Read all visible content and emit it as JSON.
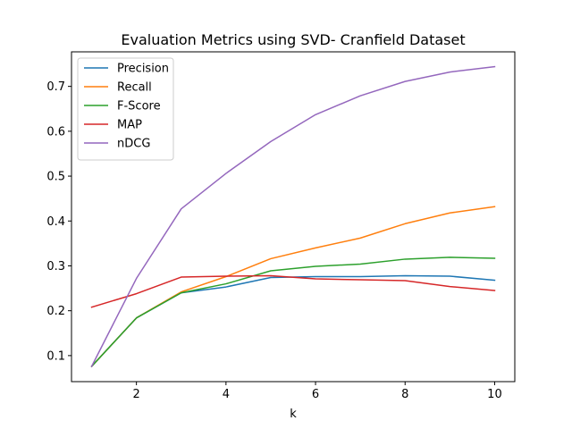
{
  "chart_data": {
    "type": "line",
    "title": "Evaluation Metrics using SVD- Cranfield Dataset",
    "xlabel": "k",
    "ylabel": "",
    "x": [
      1,
      2,
      3,
      4,
      5,
      6,
      7,
      8,
      9,
      10
    ],
    "xlim": [
      0.55,
      10.45
    ],
    "ylim": [
      0.042,
      0.777
    ],
    "xticks": [
      2,
      4,
      6,
      8,
      10
    ],
    "yticks": [
      0.1,
      0.2,
      0.3,
      0.4,
      0.5,
      0.6,
      0.7
    ],
    "grid": false,
    "legend_position": "top-left",
    "series": [
      {
        "name": "Precision",
        "color": "#1f77b4",
        "values": [
          0.076,
          0.184,
          0.24,
          0.253,
          0.274,
          0.276,
          0.276,
          0.278,
          0.277,
          0.268
        ]
      },
      {
        "name": "Recall",
        "color": "#ff7f0e",
        "values": [
          0.076,
          0.184,
          0.242,
          0.276,
          0.316,
          0.34,
          0.362,
          0.394,
          0.418,
          0.432
        ]
      },
      {
        "name": "F-Score",
        "color": "#2ca02c",
        "values": [
          0.076,
          0.184,
          0.24,
          0.26,
          0.289,
          0.299,
          0.304,
          0.315,
          0.319,
          0.317
        ]
      },
      {
        "name": "MAP",
        "color": "#d62728",
        "values": [
          0.208,
          0.238,
          0.275,
          0.277,
          0.278,
          0.271,
          0.269,
          0.267,
          0.254,
          0.245
        ]
      },
      {
        "name": "nDCG",
        "color": "#9467bd",
        "values": [
          0.076,
          0.272,
          0.427,
          0.506,
          0.577,
          0.637,
          0.679,
          0.711,
          0.732,
          0.744
        ]
      }
    ]
  }
}
